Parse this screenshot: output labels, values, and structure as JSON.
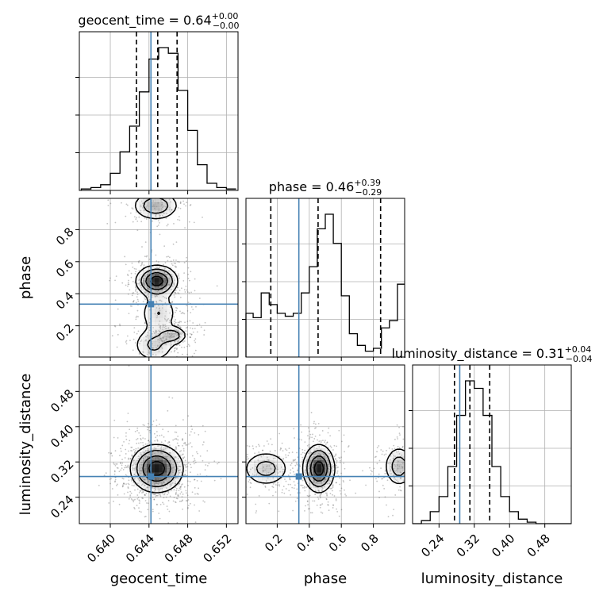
{
  "chart_data": {
    "type": "corner",
    "parameters": [
      "geocent_time",
      "phase",
      "luminosity_distance"
    ],
    "truth_color": "#4682b4",
    "titles": {
      "geocent_time": {
        "name": "geocent_time",
        "median": "0.64",
        "plus": "+0.00",
        "minus": "−0.00"
      },
      "phase": {
        "name": "phase",
        "median": "0.46",
        "plus": "+0.39",
        "minus": "−0.29"
      },
      "luminosity_distance": {
        "name": "luminosity_distance",
        "median": "0.31",
        "plus": "+0.04",
        "minus": "−0.04"
      }
    },
    "truths": {
      "geocent_time": 0.6442,
      "phase": 0.335,
      "luminosity_distance": 0.287
    },
    "ranges": {
      "geocent_time": [
        0.6368,
        0.6532
      ],
      "phase": [
        0.005,
        0.995
      ],
      "luminosity_distance": [
        0.18,
        0.54
      ]
    },
    "ticks": {
      "geocent_time": {
        "values": [
          0.64,
          0.644,
          0.648,
          0.652
        ],
        "labels": [
          "0.640",
          "0.644",
          "0.648",
          "0.652"
        ]
      },
      "phase": {
        "values": [
          0.2,
          0.4,
          0.6,
          0.8
        ],
        "labels": [
          "0.2",
          "0.4",
          "0.6",
          "0.8"
        ]
      },
      "luminosity_distance": {
        "values": [
          0.24,
          0.32,
          0.4,
          0.48
        ],
        "labels": [
          "0.24",
          "0.32",
          "0.40",
          "0.48"
        ]
      }
    },
    "quantiles": {
      "geocent_time": [
        0.6427,
        0.6449,
        0.6469
      ],
      "phase": [
        0.16,
        0.455,
        0.845
      ],
      "luminosity_distance": [
        0.275,
        0.31,
        0.355
      ]
    },
    "histograms": {
      "geocent_time": {
        "edges": [
          0.637,
          0.638,
          0.639,
          0.64,
          0.641,
          0.642,
          0.643,
          0.644,
          0.645,
          0.646,
          0.647,
          0.648,
          0.649,
          0.65,
          0.651,
          0.652,
          0.653
        ],
        "counts": [
          0.01,
          0.02,
          0.04,
          0.12,
          0.27,
          0.45,
          0.69,
          0.92,
          1.0,
          0.96,
          0.7,
          0.42,
          0.18,
          0.05,
          0.02,
          0.01
        ]
      },
      "phase": {
        "edges": [
          0.0,
          0.05,
          0.1,
          0.15,
          0.2,
          0.25,
          0.3,
          0.35,
          0.4,
          0.45,
          0.5,
          0.55,
          0.6,
          0.65,
          0.7,
          0.75,
          0.8,
          0.85,
          0.9,
          0.95,
          1.0
        ],
        "counts": [
          0.3,
          0.27,
          0.44,
          0.36,
          0.3,
          0.28,
          0.3,
          0.44,
          0.62,
          0.88,
          0.98,
          0.78,
          0.42,
          0.16,
          0.08,
          0.04,
          0.06,
          0.2,
          0.25,
          0.5
        ]
      },
      "luminosity_distance": {
        "edges": [
          0.18,
          0.2,
          0.22,
          0.24,
          0.26,
          0.28,
          0.3,
          0.32,
          0.34,
          0.36,
          0.38,
          0.4,
          0.42,
          0.44,
          0.46,
          0.48,
          0.5,
          0.52,
          0.54
        ],
        "counts": [
          0.0,
          0.02,
          0.08,
          0.18,
          0.38,
          0.72,
          0.95,
          0.9,
          0.72,
          0.38,
          0.18,
          0.08,
          0.03,
          0.01,
          0.0,
          0.0,
          0.0,
          0.0
        ]
      }
    },
    "pairs": [
      {
        "x": "geocent_time",
        "y": "phase",
        "blobs": [
          {
            "cx": 0.6448,
            "cy": 0.48,
            "sx": 0.0011,
            "sy": 0.05,
            "w": 1.0
          },
          {
            "cx": 0.6447,
            "cy": 0.95,
            "sx": 0.0013,
            "sy": 0.05,
            "w": 0.55
          },
          {
            "cx": 0.6465,
            "cy": 0.14,
            "sx": 0.0008,
            "sy": 0.03,
            "w": 0.45
          },
          {
            "cx": 0.645,
            "cy": 0.28,
            "sx": 0.0011,
            "sy": 0.07,
            "w": 0.35
          },
          {
            "cx": 0.6445,
            "cy": 0.08,
            "sx": 0.0012,
            "sy": 0.06,
            "w": 0.4
          }
        ]
      },
      {
        "x": "geocent_time",
        "y": "luminosity_distance",
        "blobs": [
          {
            "cx": 0.6448,
            "cy": 0.305,
            "sx": 0.0014,
            "sy": 0.028,
            "w": 1.0
          }
        ]
      },
      {
        "x": "phase",
        "y": "luminosity_distance",
        "blobs": [
          {
            "cx": 0.46,
            "cy": 0.305,
            "sx": 0.05,
            "sy": 0.028,
            "w": 1.0
          },
          {
            "cx": 0.13,
            "cy": 0.305,
            "sx": 0.08,
            "sy": 0.022,
            "w": 0.45
          },
          {
            "cx": 0.96,
            "cy": 0.31,
            "sx": 0.05,
            "sy": 0.025,
            "w": 0.5
          }
        ]
      }
    ],
    "contour_levels": [
      0.15,
      0.35,
      0.6,
      0.85
    ],
    "grid": true
  }
}
